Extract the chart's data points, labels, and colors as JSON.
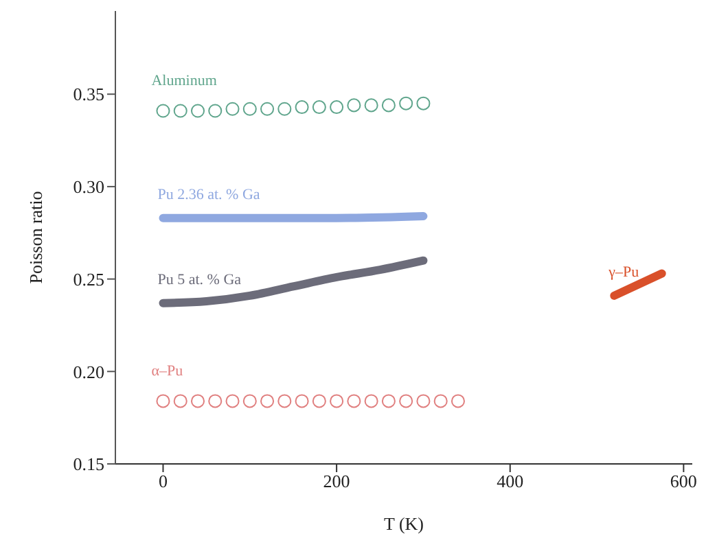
{
  "chart_data": {
    "type": "line",
    "xlabel": "T (K)",
    "ylabel": "Poisson ratio",
    "xlim": [
      -55,
      610
    ],
    "xticks": [
      0,
      200,
      400,
      600
    ],
    "ylim": [
      0.15,
      0.395
    ],
    "yticks": [
      0.15,
      {
        "value": 0.2,
        "label": "0.20"
      },
      0.25,
      {
        "value": 0.3,
        "label": "0.30"
      },
      0.35
    ],
    "grid": false,
    "legend": false,
    "series": [
      {
        "name": "Aluminum",
        "type": "scatter",
        "marker": "circle",
        "color": "#5fa58c",
        "x": [
          0,
          20,
          40,
          60,
          80,
          100,
          120,
          140,
          160,
          180,
          200,
          220,
          240,
          260,
          280,
          300
        ],
        "values": [
          0.341,
          0.341,
          0.341,
          0.341,
          0.342,
          0.342,
          0.342,
          0.342,
          0.343,
          0.343,
          0.343,
          0.344,
          0.344,
          0.344,
          0.345,
          0.345
        ]
      },
      {
        "name": "Pu 2.36 at. % Ga",
        "color": "#8fa8e0",
        "x": [
          0,
          100,
          200,
          300
        ],
        "values": [
          0.283,
          0.283,
          0.283,
          0.284
        ]
      },
      {
        "name": "Pu 5 at. % Ga",
        "color": "#6c6c7a",
        "x": [
          0,
          50,
          100,
          150,
          200,
          250,
          300
        ],
        "values": [
          0.237,
          0.238,
          0.241,
          0.246,
          0.251,
          0.255,
          0.26
        ]
      },
      {
        "name": "α–Pu",
        "type": "scatter",
        "marker": "circle",
        "color": "#e07f7f",
        "x": [
          0,
          20,
          40,
          60,
          80,
          100,
          120,
          140,
          160,
          180,
          200,
          220,
          240,
          260,
          280,
          300,
          320,
          340
        ],
        "values": [
          0.184,
          0.184,
          0.184,
          0.184,
          0.184,
          0.184,
          0.184,
          0.184,
          0.184,
          0.184,
          0.184,
          0.184,
          0.184,
          0.184,
          0.184,
          0.184,
          0.184,
          0.184
        ]
      },
      {
        "name": "γ–Pu",
        "color": "#d9502a",
        "x": [
          520,
          575
        ],
        "values": [
          0.241,
          0.253
        ]
      }
    ]
  }
}
